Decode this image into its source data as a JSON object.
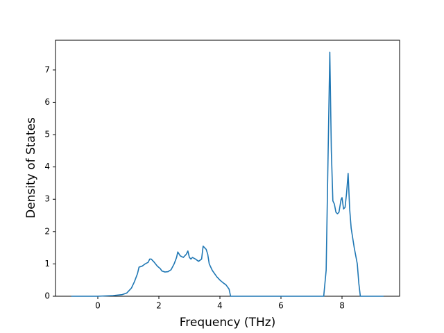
{
  "chart_data": {
    "type": "line",
    "x_label": "Frequency (THz)",
    "y_label": "Density of States",
    "x": [
      -0.87,
      0,
      0.5,
      0.8,
      0.95,
      1.1,
      1.2,
      1.3,
      1.35,
      1.45,
      1.55,
      1.65,
      1.7,
      1.75,
      1.85,
      1.95,
      2.05,
      2.1,
      2.2,
      2.3,
      2.4,
      2.5,
      2.58,
      2.62,
      2.7,
      2.8,
      2.9,
      2.95,
      3.0,
      3.05,
      3.1,
      3.2,
      3.3,
      3.4,
      3.45,
      3.55,
      3.6,
      3.65,
      3.75,
      3.9,
      4.0,
      4.1,
      4.2,
      4.3,
      4.35,
      7.4,
      7.48,
      7.6,
      7.65,
      7.7,
      7.75,
      7.8,
      7.85,
      7.9,
      7.97,
      8.0,
      8.05,
      8.1,
      8.15,
      8.2,
      8.25,
      8.3,
      8.4,
      8.5,
      8.55,
      8.6,
      9.36
    ],
    "series": [
      {
        "color": "#1f77b4",
        "values": [
          0,
          0,
          0.02,
          0.05,
          0.1,
          0.25,
          0.45,
          0.7,
          0.9,
          0.93,
          1.0,
          1.05,
          1.15,
          1.15,
          1.05,
          0.93,
          0.85,
          0.78,
          0.75,
          0.76,
          0.82,
          1.0,
          1.2,
          1.37,
          1.25,
          1.2,
          1.3,
          1.4,
          1.2,
          1.15,
          1.2,
          1.15,
          1.08,
          1.15,
          1.55,
          1.45,
          1.3,
          1.0,
          0.8,
          0.6,
          0.5,
          0.42,
          0.35,
          0.22,
          0,
          0,
          0.8,
          7.55,
          4.5,
          2.95,
          2.85,
          2.6,
          2.55,
          2.6,
          3.0,
          3.05,
          2.7,
          2.75,
          3.2,
          3.8,
          2.7,
          2.1,
          1.5,
          1.0,
          0.4,
          0,
          0
        ]
      }
    ],
    "xlim": [
      -1.386,
      9.886
    ],
    "ylim": [
      0,
      7.92
    ],
    "xticks": [
      0,
      2,
      4,
      6,
      8
    ],
    "yticks": [
      0,
      1,
      2,
      3,
      4,
      5,
      6,
      7
    ]
  }
}
